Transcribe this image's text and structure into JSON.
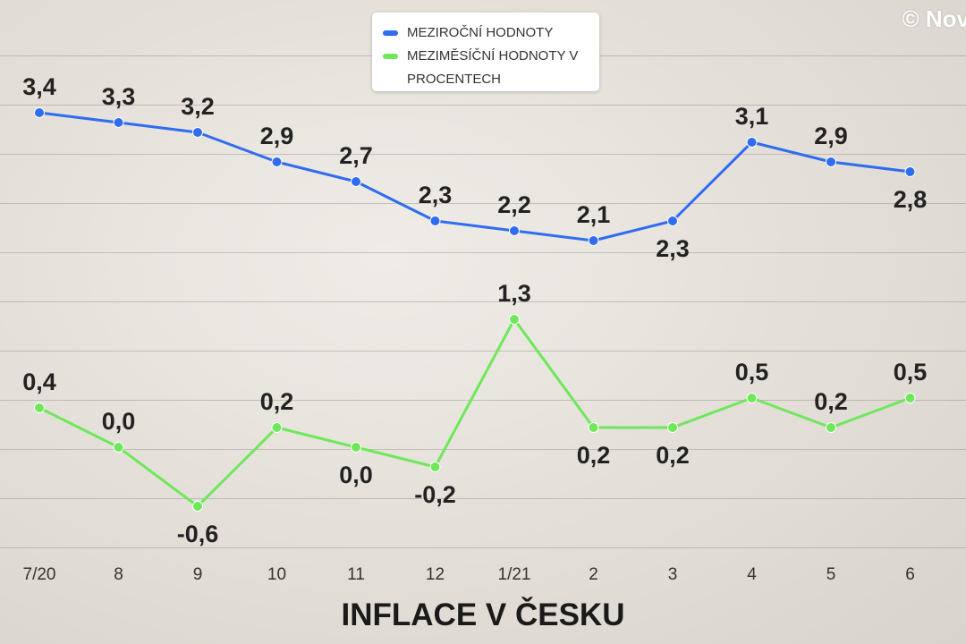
{
  "watermark": "© Nov",
  "chart_data": {
    "type": "line",
    "title": "INFLACE V ČESKU",
    "categories": [
      "7/20",
      "8",
      "9",
      "10",
      "11",
      "12",
      "1/21",
      "2",
      "3",
      "4",
      "5",
      "6"
    ],
    "ylim": [
      -1,
      4
    ],
    "series": [
      {
        "name": "MEZIROČNÍ HODNOTY",
        "color": "#2f6cf0",
        "values": [
          3.4,
          3.3,
          3.2,
          2.9,
          2.7,
          2.3,
          2.2,
          2.1,
          2.3,
          3.1,
          2.9,
          2.8
        ],
        "value_labels": [
          "3,4",
          "3,3",
          "3,2",
          "2,9",
          "2,7",
          "2,3",
          "2,2",
          "2,1",
          "2,3",
          "3,1",
          "2,9",
          "2,8"
        ]
      },
      {
        "name": "MEZIMĚSÍČNÍ HODNOTY V PROCENTECH",
        "color": "#6ee85a",
        "values": [
          0.4,
          0.0,
          -0.6,
          0.2,
          0.0,
          -0.2,
          1.3,
          0.2,
          0.2,
          0.5,
          0.2,
          0.5
        ],
        "value_labels": [
          "0,4",
          "0,0",
          "-0,6",
          "0,2",
          "0,0",
          "-0,2",
          "1,3",
          "0,2",
          "0,2",
          "0,5",
          "0,2",
          "0,5"
        ]
      }
    ]
  }
}
